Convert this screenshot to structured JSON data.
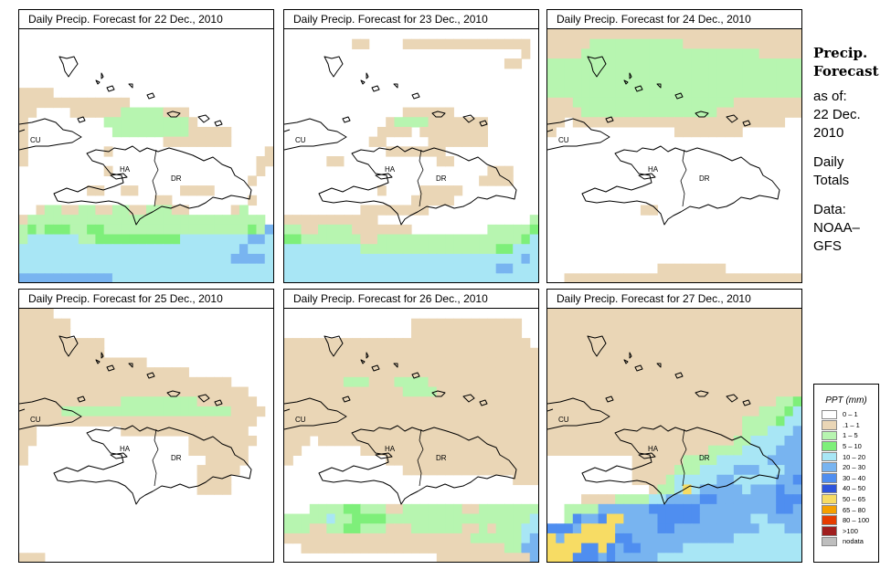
{
  "panels": [
    {
      "title": "Daily Precip. Forecast for  22 Dec., 2010",
      "day": 0
    },
    {
      "title": "Daily Precip. Forecast for  23 Dec., 2010",
      "day": 1
    },
    {
      "title": "Daily Precip. Forecast for  24 Dec., 2010",
      "day": 2
    },
    {
      "title": "Daily Precip. Forecast for  25 Dec., 2010",
      "day": 3
    },
    {
      "title": "Daily Precip. Forecast for  26 Dec., 2010",
      "day": 4
    },
    {
      "title": "Daily Precip. Forecast for  27 Dec., 2010",
      "day": 5
    }
  ],
  "map_labels": {
    "cuba": "CU",
    "haiti": "HA",
    "dominican_republic": "DR"
  },
  "sidebar": {
    "title_line1": "Precip.",
    "title_line2": "Forecast",
    "asof_line1": "as of:",
    "asof_line2": "22 Dec.",
    "asof_line3": "2010",
    "totals_line1": "Daily",
    "totals_line2": "Totals",
    "data_line1": "Data:",
    "data_line2": "NOAA–",
    "data_line3": "GFS"
  },
  "legend": {
    "title": "PPT (mm)",
    "items": [
      {
        "label": "0 – 1",
        "color": "#ffffff"
      },
      {
        "label": ".1 – 1",
        "color": "#ead6b6"
      },
      {
        "label": "1 – 5",
        "color": "#b7f5b0"
      },
      {
        "label": "5 – 10",
        "color": "#7eef7a"
      },
      {
        "label": "10 – 20",
        "color": "#a8e6f5"
      },
      {
        "label": "20 – 30",
        "color": "#78b4f0"
      },
      {
        "label": "30 – 40",
        "color": "#4f8ef0"
      },
      {
        "label": "40 – 50",
        "color": "#2e55dc"
      },
      {
        "label": "50 – 65",
        "color": "#f7dc64"
      },
      {
        "label": "65 – 80",
        "color": "#f5a000"
      },
      {
        "label": "80 – 100",
        "color": "#e63c00"
      },
      {
        "label": ">100",
        "color": "#a01e1e"
      },
      {
        "label": "nodata",
        "color": "#bebebe"
      }
    ]
  },
  "precip_grids": [
    [
      "..............................",
      "..............................",
      "..............................",
      "..............................",
      "..............................",
      "..............................",
      "bbbb..........................",
      "bbbbbbbbbbbbb.................",
      "bb....bbbbbbcccccbbb..........",
      "b.........ccccccccccb.........",
      "b..........cccccccccbbbbb.....",
      "b................bbbbbbbb.....",
      "b.........b..................b",
      "b...........................bb",
      "..........b.................b.",
      "...........................b..",
      "........bb..bb.....bbbb.......",
      "................bb.........b..",
      "..bccbbccbbccbbcccbb.....bc...",
      "bcccccccccccccccccccccccccccc.",
      "cdcdddccddcccccccccccccccccdcf",
      "ceeeeeeccddddddddddeeeeeeeeffe",
      "eeeeeeeeeeeeeeeeeeeeeeeeeefeee",
      "eeeeeeeeeeeeeeeeeeeeeeeeeffffe",
      "eeeeeeeeeeeeeeeeeeeeeeeeeeeeee",
      "fffffffffffeeeeeeeeeeeeeeeeeee"
    ],
    [
      "..............................",
      "........bb....bbbbbbbbbbbbbbb.",
      "............................b.",
      "..........................bb..",
      "..............................",
      "..............................",
      "..............................",
      "..............................",
      "..............bbbbbb..........",
      "............bccccbbbbbbb......",
      "...........bbbb.bbbbbbbb......",
      "..........bb.....bbbbbbb......",
      "............bbbbbbb...........",
      ".....bb...........bb..........",
      "........................bbb...",
      ".......................bbbb...",
      "...........b....bbbbb.........",
      "...............bbbbb..........",
      ".........bbbbbbbb.............",
      "bbbbbbbbbbb..................c",
      "ccbbccccbbbbbbb.........cccccd",
      "ddcccccccbbcccccccccccccccccde",
      "eeeeeeeeeccccccccccccccccddeee",
      "eeeeeeeeeeeeeeeeeeeeeeeeeeeefe",
      "eeeeeeeeeeeeeeeeeeeeeeeeeffeee",
      "eeeeeeeeeeeeeeeeeeeeeeeeeeeeee"
    ],
    [
      "bbbbbbbbbbbbbbbbbbbbbbbbbbbbbb",
      "bbbbbcccccccccccbbbbbbbbbbbbbb",
      "bbbbcccccccccccccccccccccbbbbb",
      "cccccccccccccccccccccccccccccc",
      "cccccccccccccccccccccccccccccc",
      "cccccccccccccccccccccccccccccc",
      "cccccccccccccccccccccccccccccc",
      "bbbcccccccccccccccccccbbbbbbbb",
      "bbbbccccccccccccccccbbbbbbbbbb",
      "bb.bbbbbbbbbbbbbbbbbbbbbbbbb..",
      "b..............bbbbbbbb.......",
      "..............................",
      "..............................",
      "..............................",
      "..............................",
      "..............................",
      "..............................",
      "..............................",
      "...........bb.................",
      "..............................",
      "..............................",
      "..............................",
      "..............................",
      "..............................",
      ".............bbbbbbbb.........",
      "..bbbbbbbbbbbbbbbbbbbbbbbbbbbb"
    ],
    [
      "bbbb..........................",
      "bbbbbb........................",
      "bbbbbb........................",
      "bbbbbbbbbb....................",
      "bbbbbbbbbb....................",
      "bbbbbbbbbbbbbbb...............",
      "bbbbbbbbbbbbbbbbbbbb..........",
      "bbbbbbbbbbbbbbbbbbbbbbbbb.....",
      "bbbbbbbbbbbbbbbbbbbbbbbbbbb...",
      "bbbbbbbbbbbbcccccccccbbbbbbb..",
      "bbbbbccccccccccccccccccccbbbb.",
      "bbbbbbbbbbbbbbbbbbbbbbbbbbbb..",
      "bb..........bbbbbbbbbbbbbbb...",
      "bb..................bbbbbbbb..",
      "b...................bbbbbbb...",
      "b.....................bbbbb...",
      ".....................bbbbb....",
      ".....................bbbb.....",
      ".....................bbbb.....",
      "..............................",
      "..............................",
      "..............................",
      "..............................",
      "..............................",
      "..............................",
      "bbb..........................."
    ],
    [
      "..............................",
      "...............bbbbbbbbbbbbb..",
      "...............bbbbbbbbbbbbb..",
      "bbbbbbbbbbbbbbbbbbbbbbbbbbbbb.",
      "bbbbbbbbbbbbbbbbbbbbbbbbbbbbbb",
      "bbbbbbbbbbbbbbbbbbbbbbbbbbbbbb",
      "bbbbbbbbbbbbbbbbbbbbbbbbbbbbbb",
      "bbbbbbbcccbbbccccbbbbbbbbbbbbb",
      "bbbbbbbbbbbbbbccccbbbbbbbbbbbb",
      "bbbbbbbbbbbbbbbbbbbbbbbbbbbbbb",
      "bbbbbbbbbbbbbbbbbbbbbbbbbbbbbb",
      "bbbbbbbbbbbbbbbbbbbbbbbbbbbbbb",
      "bbbbbbbbbbbbbbbbbbbbbbbbbbbbbb",
      "bbb.bbbbbbbbbbbbbbbbbbbbbbbbbb",
      "bb.......bbbbbbbbbbbbbbbbbbbbb",
      "b...........bbbbbbbbbbbbbbbbbb",
      "..............bbbbbbbbbbbbbbbb",
      "...........................bbb",
      "..............................",
      "..............................",
      "...ccccddcccbbcccccccbbccccccc",
      "ccccceccddddccccccccccccccccce",
      "cccbbccddcccbbbccccccbbcbcccee",
      "bbbbbbbbbbbbbbbbbbbbbbccccccef",
      "..bbbbbbbbbbbbbbbbbbbbbbbbccff",
      "..................bbbbbbbbbbbf"
    ],
    [
      "bbbbbbbbbbbbbbbbbbbbbbbbbbbbbb",
      "bbbbbbbbbbbbbbbbbbbbbbbbbbbbbb",
      "bbbbbbbbbbbbbbbbbbbbbbbbbbbbbb",
      "bbbbbbbbbbbbbbbbbbbbbbbbbbbbbb",
      "bbbbbbbbbbbbbbbbbbbbbbbbbbbbbb",
      "bbbbbbbbbbbbbbbbbbbbbbbbbbbbbb",
      "bbbbbbbbbbbbbbbbbbbbbbbbbbbbbb",
      "bbbbbbbbbbbbbbbbbbbbbbbbbbbbbb",
      "bbbbbbbbbbbbbbbbbbbbbbbbbbbbbb",
      "bbbbbbbbbbbbbbbbbbbbbbbbbbbccd",
      "bbbbbbbbbbbbbbbbbbbbbbbbbcccde",
      "bbbbbbbbbbbbbbbbbbbbbbbccccdee",
      "bbbbbbbbbbbbbbbbbbbbbbbccceeef",
      "bbbbbbbbbbbbbbbbbbbbbbcceeeeff",
      "bbbbbbbbbbbbbbbbbbbcccceeeefff",
      "..........bbbbbbcccceeeeeeffff",
      "..........bbbbbccceeeefffeeeff",
      "..........bbbbceeeeeffeeeeeffg",
      "............bcceiefffffefffgff",
      "....bbbbcccceeffffggfffffffggg",
      "..ccccffffffggggggfffffffffggf",
      "..cgffgiiffffgggggffffffeeffff",
      "gggfiiiifffffggffffffffffeeeff",
      "ifiiiiiiggffffffffffffeeeeeeee",
      "iiiiggigfggfffffeeeeeeeeeeeeee",
      "iiigggfgfffffeeeeeeeeeeeeeeeee"
    ]
  ]
}
